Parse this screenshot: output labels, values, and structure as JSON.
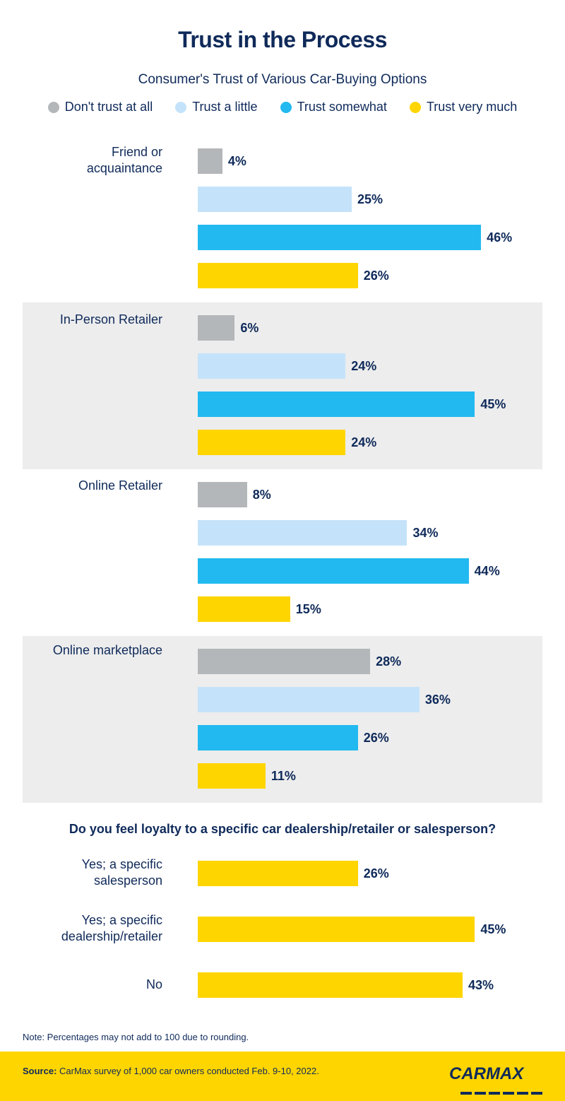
{
  "chart_data": {
    "type": "bar",
    "orientation": "horizontal",
    "title": "Trust in the Process",
    "subtitle": "Consumer's Trust of Various Car-Buying Options",
    "legend_position": "top",
    "series_names": [
      "Don't trust at all",
      "Trust a little",
      "Trust somewhat",
      "Trust very much"
    ],
    "colors": [
      "#b4b7ba",
      "#c4e3fa",
      "#22b9f0",
      "#ffd500"
    ],
    "groups": [
      {
        "label": "Friend or acquaintance",
        "label_lines": [
          "Friend or",
          "acquaintance"
        ],
        "values": [
          4,
          25,
          46,
          26
        ]
      },
      {
        "label": "In-Person Retailer",
        "label_lines": [
          "In-Person Retailer"
        ],
        "values": [
          6,
          24,
          45,
          24
        ]
      },
      {
        "label": "Online Retailer",
        "label_lines": [
          "Online Retailer"
        ],
        "values": [
          8,
          34,
          44,
          15
        ]
      },
      {
        "label": "Online marketplace",
        "label_lines": [
          "Online marketplace"
        ],
        "values": [
          28,
          36,
          26,
          11
        ]
      }
    ],
    "value_suffix": "%",
    "grid": false
  },
  "loyalty_chart": {
    "type": "bar",
    "question": "Do you feel loyalty to a specific car dealership/retailer or salesperson?",
    "color": "#ffd500",
    "items": [
      {
        "label_lines": [
          "Yes; a specific",
          "salesperson"
        ],
        "value": 26
      },
      {
        "label_lines": [
          "Yes; a specific",
          "dealership/retailer"
        ],
        "value": 45
      },
      {
        "label_lines": [
          "No"
        ],
        "value": 43
      }
    ]
  },
  "note": "Note: Percentages may not add to 100 due to rounding.",
  "footer": {
    "source_label": "Source:",
    "source_text": " CarMax survey of 1,000 car owners conducted Feb. 9-10, 2022.",
    "logo": "CARMAX"
  }
}
